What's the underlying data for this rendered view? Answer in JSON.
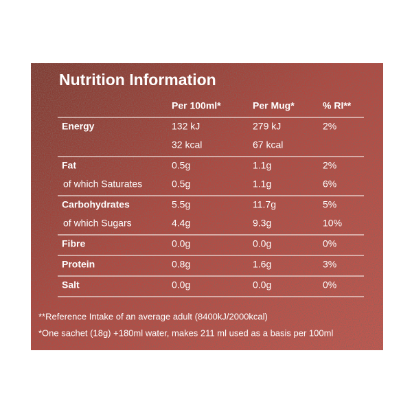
{
  "title": "Nutrition Information",
  "columns": [
    "Per 100ml*",
    "Per Mug*",
    "% RI**"
  ],
  "groups": [
    {
      "lines": [
        {
          "label": "Energy",
          "values": [
            "132 kJ",
            "279 kJ",
            "2%"
          ]
        },
        {
          "values": [
            "32 kcal",
            "67 kcal"
          ]
        }
      ]
    },
    {
      "lines": [
        {
          "label": "Fat",
          "values": [
            "0.5g",
            "1.1g",
            "2%"
          ]
        },
        {
          "label": "of which Saturates",
          "values": [
            "0.5g",
            "1.1g",
            "6%"
          ]
        }
      ]
    },
    {
      "lines": [
        {
          "label": "Carbohydrates",
          "values": [
            "5.5g",
            "11.7g",
            "5%"
          ]
        },
        {
          "label": "of which Sugars",
          "values": [
            "4.4g",
            "9.3g",
            "10%"
          ]
        }
      ]
    },
    {
      "lines": [
        {
          "label": "Fibre",
          "values": [
            "0.0g",
            "0.0g",
            "0%"
          ]
        }
      ]
    },
    {
      "lines": [
        {
          "label": "Protein",
          "values": [
            "0.8g",
            "1.6g",
            "3%"
          ]
        }
      ]
    },
    {
      "lines": [
        {
          "label": "Salt",
          "values": [
            "0.0g",
            "0.0g",
            "0%"
          ]
        }
      ]
    }
  ],
  "footnotes": [
    "**Reference Intake of an average adult (8400kJ/2000kcal)",
    "*One sachet (18g) +180ml water, makes 211 ml used as a basis per 100ml"
  ]
}
